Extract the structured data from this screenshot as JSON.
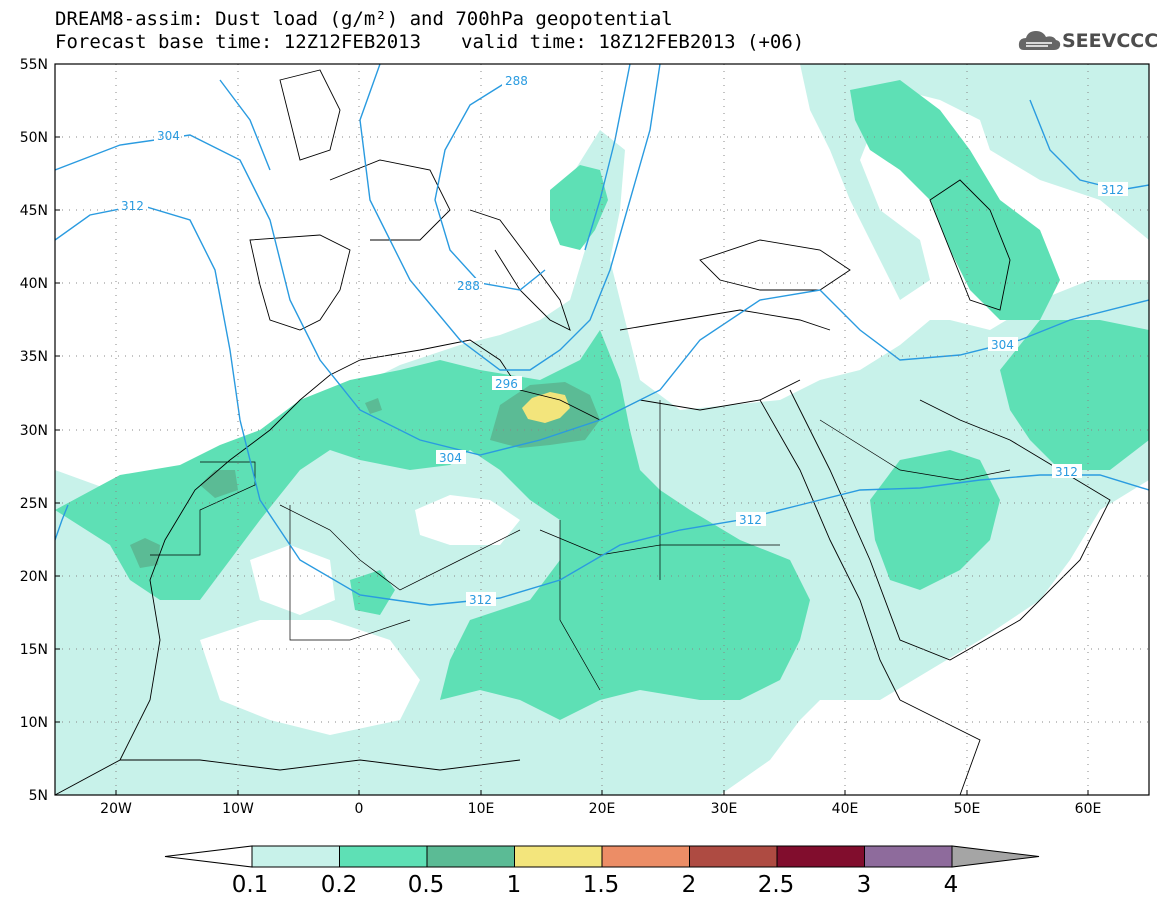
{
  "header": {
    "title_line1": "DREAM8-assim: Dust load (g/m²) and 700hPa geopotential",
    "base_time": "Forecast base time: 12Z12FEB2013",
    "valid_time": "valid time: 18Z12FEB2013 (+06)"
  },
  "logo": {
    "text": "SEEVCCC",
    "icon": "cloud-logo-icon"
  },
  "map": {
    "lat_labels": [
      "55N",
      "50N",
      "45N",
      "40N",
      "35N",
      "30N",
      "25N",
      "20N",
      "15N",
      "10N",
      "5N"
    ],
    "lon_labels": [
      "20W",
      "10W",
      "0",
      "10E",
      "20E",
      "30E",
      "40E",
      "50E",
      "60E"
    ],
    "contour_labels": [
      "288",
      "288",
      "296",
      "304",
      "304",
      "304",
      "312",
      "312",
      "312",
      "312",
      "312"
    ]
  },
  "colorbar": {
    "labels": [
      "0.1",
      "0.2",
      "0.5",
      "1",
      "1.5",
      "2",
      "2.5",
      "3",
      "4"
    ],
    "colors": [
      "#c8f2ea",
      "#5ee0b5",
      "#5bbb95",
      "#f3e57c",
      "#ec8d66",
      "#ae4b42",
      "#810d2d",
      "#8e6b9c"
    ],
    "arrow_left_color": "#ffffff",
    "arrow_right_color": "#a5a5a5"
  },
  "colors": {
    "dust_light": "#c8f2ea",
    "dust_mid": "#5ee0b5",
    "dust_dark": "#5bbb95",
    "dust_yellow": "#f3e57c",
    "contour_line": "#2a9be0"
  }
}
